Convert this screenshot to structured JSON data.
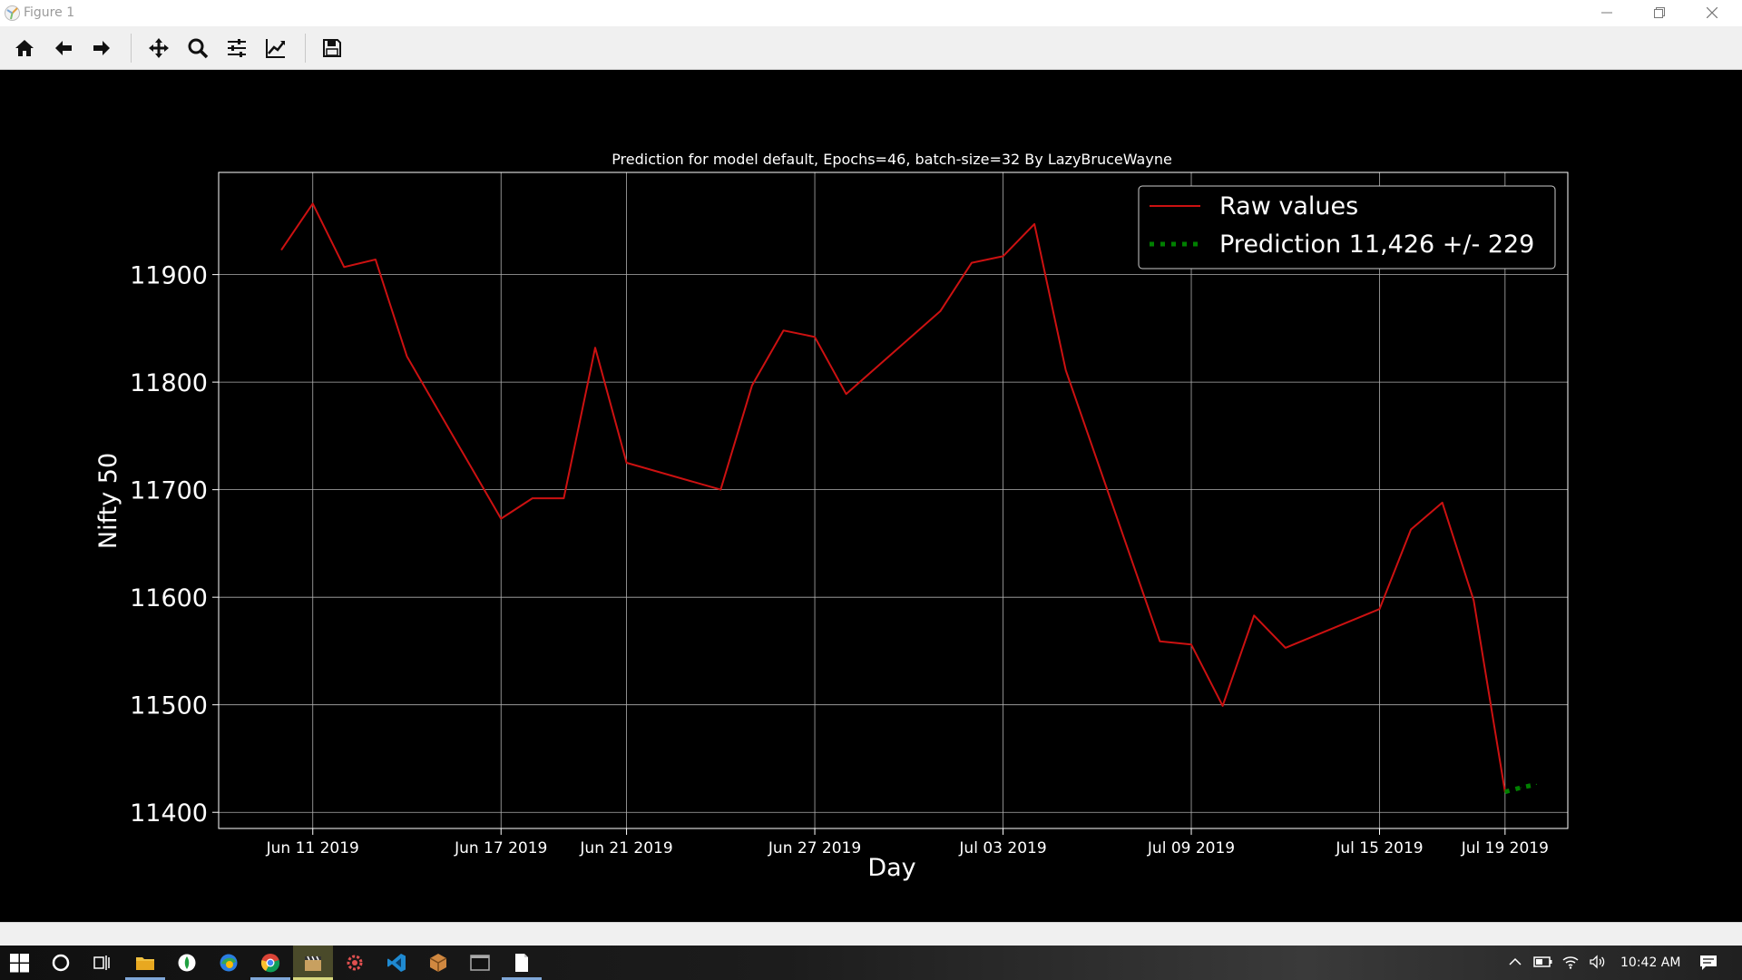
{
  "window": {
    "title": "Figure 1",
    "controls": [
      "minimize",
      "restore",
      "close"
    ]
  },
  "toolbar": {
    "buttons": [
      {
        "name": "home-icon",
        "tooltip": "Reset original view"
      },
      {
        "name": "back-arrow-icon",
        "tooltip": "Back to previous view"
      },
      {
        "name": "forward-arrow-icon",
        "tooltip": "Forward to next view"
      },
      {
        "name": "pan-icon",
        "tooltip": "Pan axes"
      },
      {
        "name": "zoom-icon",
        "tooltip": "Zoom to rectangle"
      },
      {
        "name": "configure-subplots-icon",
        "tooltip": "Configure subplots"
      },
      {
        "name": "edit-axis-icon",
        "tooltip": "Edit axis, curve and image parameters"
      },
      {
        "name": "save-icon",
        "tooltip": "Save the figure"
      }
    ]
  },
  "colors": {
    "background": "#000000",
    "raw_line": "#cc1111",
    "prediction_line": "#008000",
    "grid": "#b0b0b0",
    "text": "#ffffff"
  },
  "chart_data": {
    "type": "line",
    "title": "Prediction for model default, Epochs=46, batch-size=32 By LazyBruceWayne",
    "xlabel": "Day",
    "ylabel": "Nifty 50",
    "ylim": [
      11385,
      11995
    ],
    "xlim": [
      "2019-06-08",
      "2019-07-21"
    ],
    "grid": true,
    "legend_position": "top-right",
    "x_ticks": [
      {
        "date": "2019-06-11",
        "label": "Jun 11 2019"
      },
      {
        "date": "2019-06-17",
        "label": "Jun 17 2019"
      },
      {
        "date": "2019-06-21",
        "label": "Jun 21 2019"
      },
      {
        "date": "2019-06-27",
        "label": "Jun 27 2019"
      },
      {
        "date": "2019-07-03",
        "label": "Jul 03 2019"
      },
      {
        "date": "2019-07-09",
        "label": "Jul 09 2019"
      },
      {
        "date": "2019-07-15",
        "label": "Jul 15 2019"
      },
      {
        "date": "2019-07-19",
        "label": "Jul 19 2019"
      }
    ],
    "y_ticks": [
      11400,
      11500,
      11600,
      11700,
      11800,
      11900
    ],
    "series": [
      {
        "name": "Raw values",
        "style": "solid",
        "color": "#cc1111",
        "points": [
          [
            "2019-06-10",
            11923
          ],
          [
            "2019-06-11",
            11966
          ],
          [
            "2019-06-12",
            11907
          ],
          [
            "2019-06-13",
            11914
          ],
          [
            "2019-06-14",
            11824
          ],
          [
            "2019-06-17",
            11673
          ],
          [
            "2019-06-18",
            11692
          ],
          [
            "2019-06-19",
            11692
          ],
          [
            "2019-06-20",
            11832
          ],
          [
            "2019-06-21",
            11725
          ],
          [
            "2019-06-24",
            11700
          ],
          [
            "2019-06-25",
            11797
          ],
          [
            "2019-06-26",
            11848
          ],
          [
            "2019-06-27",
            11842
          ],
          [
            "2019-06-28",
            11789
          ],
          [
            "2019-07-01",
            11866
          ],
          [
            "2019-07-02",
            11911
          ],
          [
            "2019-07-03",
            11917
          ],
          [
            "2019-07-04",
            11947
          ],
          [
            "2019-07-05",
            11811
          ],
          [
            "2019-07-08",
            11559
          ],
          [
            "2019-07-09",
            11556
          ],
          [
            "2019-07-10",
            11499
          ],
          [
            "2019-07-11",
            11583
          ],
          [
            "2019-07-12",
            11553
          ],
          [
            "2019-07-15",
            11589
          ],
          [
            "2019-07-16",
            11663
          ],
          [
            "2019-07-17",
            11688
          ],
          [
            "2019-07-18",
            11597
          ],
          [
            "2019-07-19",
            11419
          ]
        ]
      },
      {
        "name": "Prediction 11,426 +/- 229",
        "style": "dotted",
        "color": "#008000",
        "points": [
          [
            "2019-07-19",
            11419
          ],
          [
            "2019-07-19T12:00",
            11423
          ],
          [
            "2019-07-20",
            11426
          ]
        ]
      }
    ]
  },
  "taskbar": {
    "clock": "10:42 AM",
    "apps": [
      "start-icon",
      "cortana-icon",
      "task-view-icon",
      "file-explorer-icon",
      "app-icon",
      "browser-icon",
      "chrome-icon",
      "clapper-icon",
      "gear-app-icon",
      "vscode-icon",
      "package-icon",
      "terminal-icon",
      "document-icon"
    ],
    "tray": [
      "chevron-up-icon",
      "battery-icon",
      "wifi-icon",
      "volume-icon",
      "notification-icon"
    ]
  }
}
